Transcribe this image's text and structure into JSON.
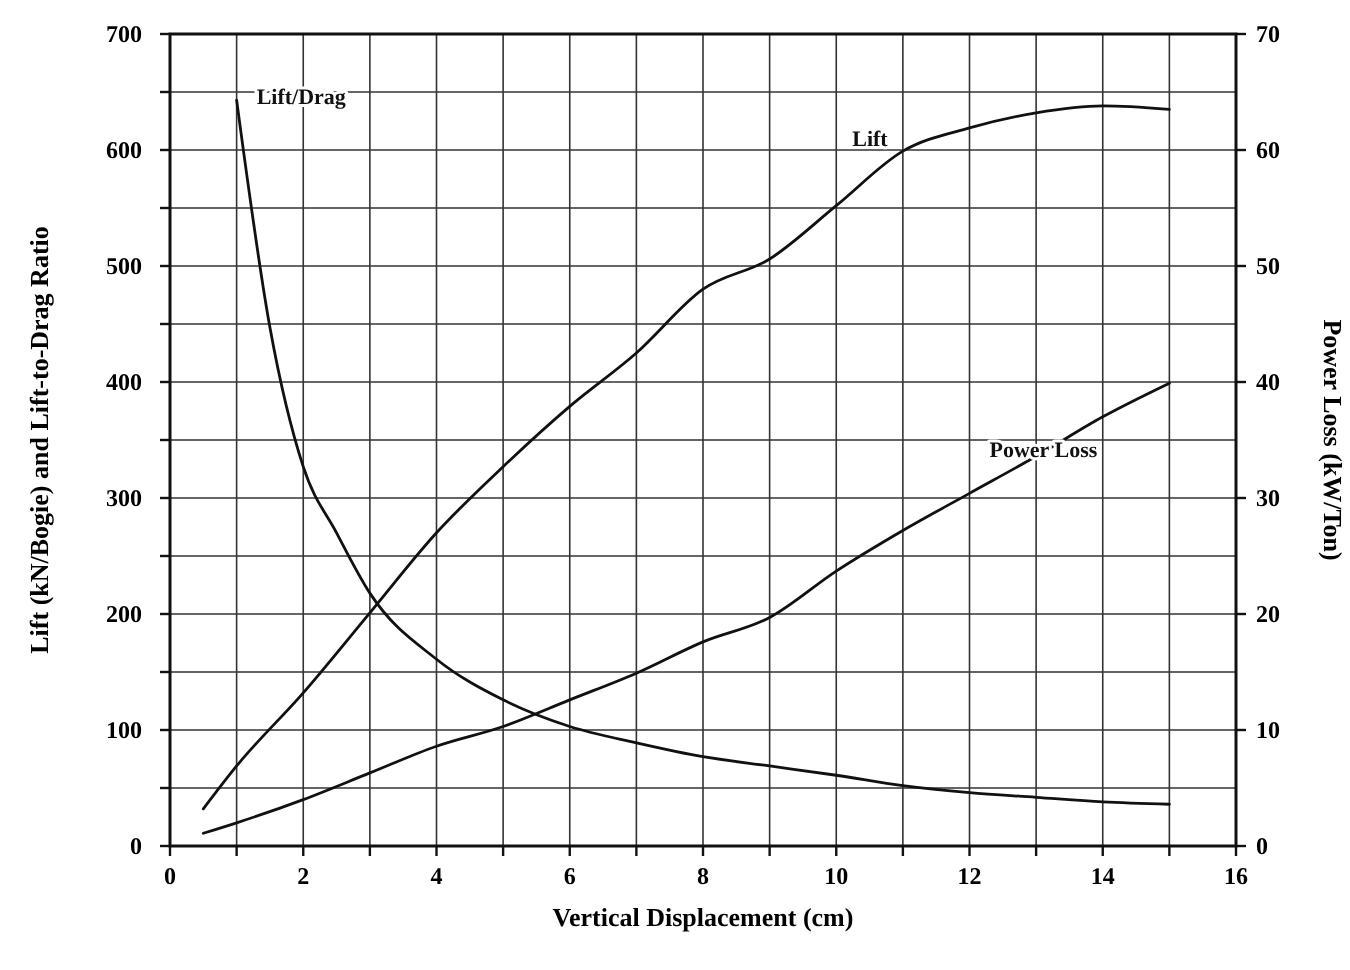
{
  "chart_data": {
    "type": "line",
    "xlabel": "Vertical Displacement (cm)",
    "ylabel": "Lift (kN/Bogie) and Lift-to-Drag Ratio",
    "y2label": "Power Loss (kW/Ton)",
    "xlim": [
      0,
      16
    ],
    "xticks": [
      0,
      {
        "value": 1,
        "label": null
      },
      2,
      {
        "value": 3,
        "label": null
      },
      4,
      {
        "value": 5,
        "label": null
      },
      6,
      {
        "value": 7,
        "label": null
      },
      8,
      {
        "value": 9,
        "label": null
      },
      10,
      {
        "value": 11,
        "label": null
      },
      12,
      {
        "value": 13,
        "label": null
      },
      14,
      {
        "value": 15,
        "label": null
      },
      16
    ],
    "ylim": [
      0,
      700
    ],
    "yticks": [
      0,
      {
        "value": 50,
        "label": null
      },
      100,
      {
        "value": 150,
        "label": null
      },
      200,
      {
        "value": 250,
        "label": null
      },
      300,
      {
        "value": 350,
        "label": null
      },
      400,
      {
        "value": 450,
        "label": null
      },
      500,
      {
        "value": 550,
        "label": null
      },
      600,
      {
        "value": 650,
        "label": null
      },
      700
    ],
    "y2lim": [
      0,
      70
    ],
    "y2ticks": [
      0,
      10,
      20,
      30,
      40,
      50,
      60,
      70
    ],
    "grid": true,
    "marker": "none",
    "line_style": "solid",
    "series": [
      {
        "name": "Lift/Drag",
        "color": "#111111",
        "x": [
          1,
          1.5,
          2,
          2.5,
          3,
          4,
          5,
          6,
          7,
          8,
          9,
          10,
          11,
          12,
          13,
          14,
          15
        ],
        "values": [
          643,
          447,
          327,
          270,
          218,
          161,
          126,
          103,
          89,
          77,
          69,
          61,
          52,
          46,
          42,
          38,
          36
        ]
      },
      {
        "name": "Lift",
        "color": "#111111",
        "x": [
          0.5,
          1,
          2,
          3,
          4,
          5,
          6,
          7,
          8,
          9,
          10,
          11,
          12,
          13,
          14,
          15
        ],
        "values": [
          32,
          69,
          132,
          201,
          270,
          327,
          379,
          425,
          480,
          506,
          552,
          599,
          619,
          632,
          638,
          635
        ]
      },
      {
        "name": "Power Loss",
        "color": "#111111",
        "axis": "y2",
        "x": [
          0.5,
          1,
          2,
          3,
          4,
          5,
          6,
          7,
          8,
          9,
          10,
          11,
          12,
          13,
          14,
          15
        ],
        "values": [
          1.1,
          2,
          4,
          6.3,
          8.6,
          10.3,
          12.6,
          14.9,
          17.6,
          19.7,
          23.7,
          27.2,
          30.4,
          33.6,
          37,
          39.9
        ]
      }
    ]
  }
}
